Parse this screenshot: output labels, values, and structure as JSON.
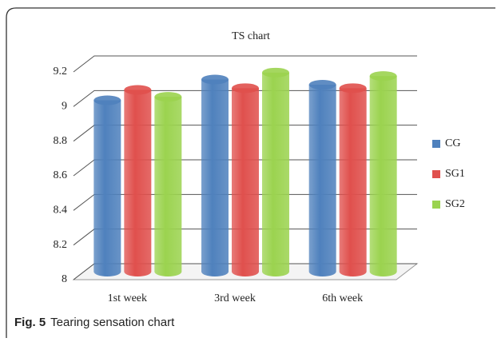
{
  "chart_data": {
    "type": "bar",
    "title": "TS chart",
    "categories": [
      "1st week",
      "3rd week",
      "6th week"
    ],
    "series": [
      {
        "name": "CG",
        "color": "#4f81bd",
        "values": [
          8.99,
          9.11,
          9.08
        ]
      },
      {
        "name": "SG1",
        "color": "#e0504d",
        "values": [
          9.05,
          9.06,
          9.06
        ]
      },
      {
        "name": "SG2",
        "color": "#9bd34f",
        "values": [
          9.01,
          9.15,
          9.13
        ]
      }
    ],
    "ylim": [
      8,
      9.2
    ],
    "yticks": [
      8,
      8.2,
      8.4,
      8.6,
      8.8,
      9,
      9.2
    ],
    "grid": true,
    "legend": "right"
  },
  "caption": {
    "label": "Fig. 5",
    "text": "Tearing sensation chart"
  }
}
